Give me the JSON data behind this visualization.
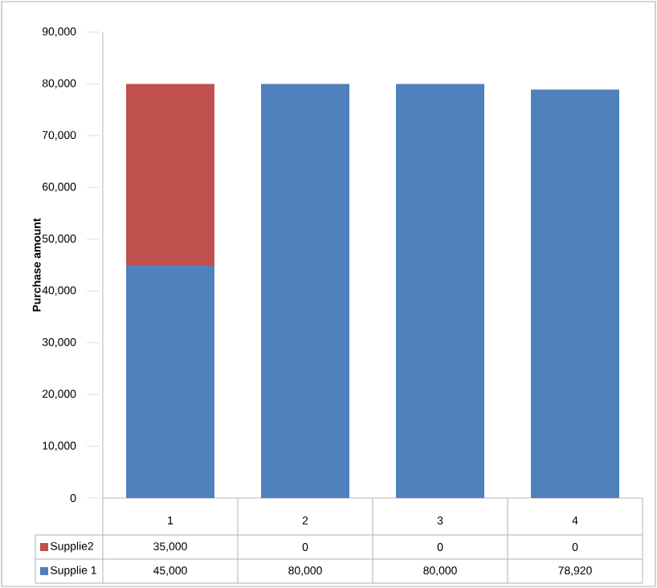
{
  "chart_data": {
    "type": "bar",
    "stacked": true,
    "ylabel": "Purchase amount",
    "categories": [
      "1",
      "2",
      "3",
      "4"
    ],
    "series": [
      {
        "name": "Supplie 1",
        "color": "#4f81bd",
        "values": [
          45000,
          80000,
          80000,
          78920
        ],
        "value_labels": [
          "45,000",
          "80,000",
          "80,000",
          "78,920"
        ]
      },
      {
        "name": "Supplie2",
        "color": "#c0504d",
        "values": [
          35000,
          0,
          0,
          0
        ],
        "value_labels": [
          "35,000",
          "0",
          "0",
          "0"
        ]
      }
    ],
    "ylim": [
      0,
      90000
    ],
    "yticks": [
      0,
      {
        "value": 10000,
        "label": "10,000"
      },
      {
        "value": 20000,
        "label": "20,000"
      },
      {
        "value": 30000,
        "label": "30,000"
      },
      {
        "value": 40000,
        "label": "40,000"
      },
      {
        "value": 50000,
        "label": "50,000"
      },
      {
        "value": 60000,
        "label": "60,000"
      },
      {
        "value": 70000,
        "label": "70,000"
      },
      {
        "value": 80000,
        "label": "80,000"
      },
      {
        "value": 90000,
        "label": "90,000"
      }
    ],
    "legend": "bottom",
    "grid": false
  }
}
